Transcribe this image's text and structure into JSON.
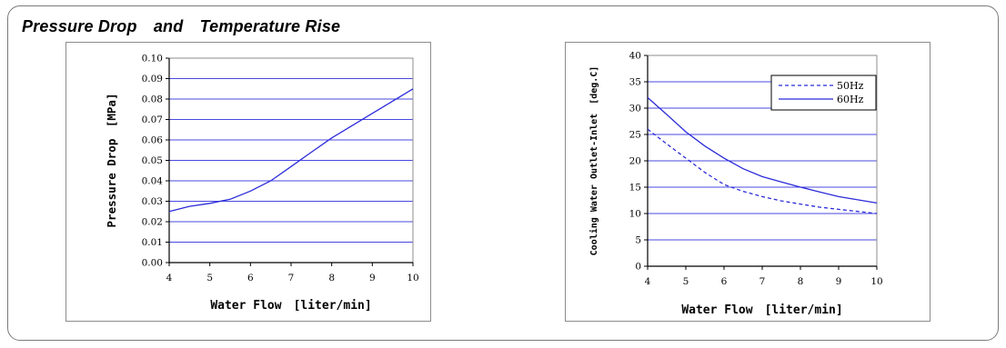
{
  "title": "Pressure Drop　and　Temperature Rise",
  "colors": {
    "line": "#2b2bd9",
    "grid": "#4848e0",
    "axis": "#000000"
  },
  "chart_data": [
    {
      "type": "line",
      "xlabel": "Water Flow　[liter/min]",
      "ylabel": "Pressure Drop　[MPa]",
      "xlim": [
        4,
        10
      ],
      "ylim": [
        0,
        0.1
      ],
      "x_ticks": [
        "4",
        "5",
        "6",
        "7",
        "8",
        "9",
        "10"
      ],
      "y_ticks": [
        "0.00",
        "0.01",
        "0.02",
        "0.03",
        "0.04",
        "0.05",
        "0.06",
        "0.07",
        "0.08",
        "0.09",
        "0.10"
      ],
      "grid": true,
      "legend": null,
      "series": [
        {
          "style": "solid",
          "x": [
            4,
            4.5,
            5,
            5.5,
            6,
            6.5,
            7,
            7.5,
            8,
            8.5,
            9,
            9.5,
            10
          ],
          "y": [
            0.025,
            0.0275,
            0.029,
            0.031,
            0.035,
            0.04,
            0.047,
            0.054,
            0.061,
            0.067,
            0.073,
            0.079,
            0.085
          ]
        }
      ]
    },
    {
      "type": "line",
      "xlabel": "Water Flow　[liter/min]",
      "ylabel": "Cooling Water Outlet-Inlet　[deg.C]",
      "xlim": [
        4,
        10
      ],
      "ylim": [
        0,
        40
      ],
      "x_ticks": [
        "4",
        "5",
        "6",
        "7",
        "8",
        "9",
        "10"
      ],
      "y_ticks": [
        "0",
        "5",
        "10",
        "15",
        "20",
        "25",
        "30",
        "35",
        "40"
      ],
      "grid": true,
      "legend": "top-right",
      "series": [
        {
          "name": "50Hz",
          "style": "dashed",
          "x": [
            4,
            4.5,
            5,
            5.5,
            6,
            6.5,
            7,
            7.5,
            8,
            8.5,
            9,
            9.5,
            10
          ],
          "y": [
            26,
            23.2,
            20.5,
            17.8,
            15.5,
            14.2,
            13.2,
            12.4,
            11.8,
            11.2,
            10.8,
            10.4,
            10
          ]
        },
        {
          "name": "60Hz",
          "style": "solid",
          "x": [
            4,
            4.5,
            5,
            5.5,
            6,
            6.5,
            7,
            7.5,
            8,
            8.5,
            9,
            9.5,
            10
          ],
          "y": [
            32,
            28.8,
            25.5,
            22.8,
            20.5,
            18.5,
            17,
            16,
            15,
            14.1,
            13.2,
            12.6,
            12
          ]
        }
      ]
    }
  ]
}
